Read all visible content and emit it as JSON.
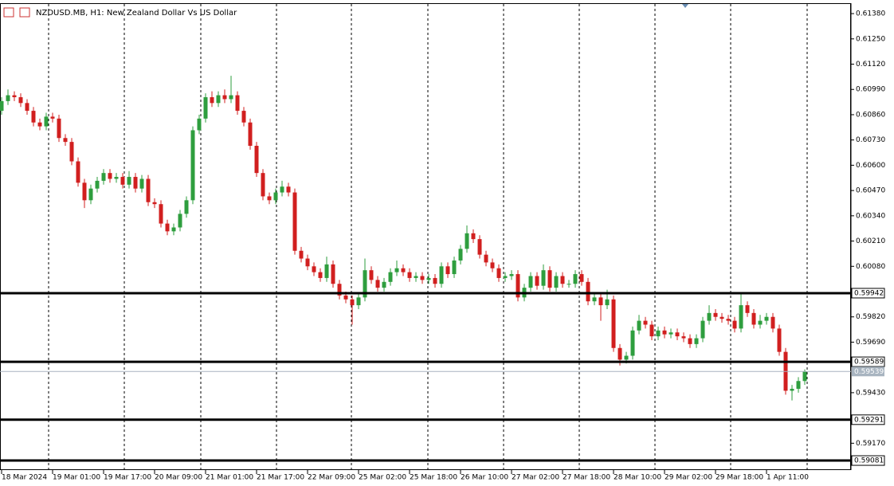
{
  "chart_data": {
    "type": "candlestick",
    "title": "NZDUSD.MB, H1:  New Zealand Dollar Vs US Dollar",
    "bull_color": "#2e9e3e",
    "bear_color": "#d11f1f",
    "ylim": [
      0.59032,
      0.6145
    ],
    "yticks": [
      {
        "value": 0.6138,
        "label": "0.61380"
      },
      {
        "value": 0.6125,
        "label": "0.61250"
      },
      {
        "value": 0.6112,
        "label": "0.61120"
      },
      {
        "value": 0.6099,
        "label": "0.60990"
      },
      {
        "value": 0.6086,
        "label": "0.60860"
      },
      {
        "value": 0.6073,
        "label": "0.60730"
      },
      {
        "value": 0.606,
        "label": "0.60600"
      },
      {
        "value": 0.6047,
        "label": "0.60470"
      },
      {
        "value": 0.6034,
        "label": "0.60340"
      },
      {
        "value": 0.6021,
        "label": "0.60210"
      },
      {
        "value": 0.6008,
        "label": "0.60080"
      },
      {
        "value": 0.5982,
        "label": "0.59820"
      },
      {
        "value": 0.5969,
        "label": "0.59690"
      },
      {
        "value": 0.5943,
        "label": "0.59430"
      },
      {
        "value": 0.5917,
        "label": "0.59170"
      }
    ],
    "xticks": [
      {
        "value": 0,
        "label": "18 Mar 2024"
      },
      {
        "value": 8,
        "label": "19 Mar 01:00"
      },
      {
        "value": 16,
        "label": "19 Mar 17:00"
      },
      {
        "value": 24,
        "label": "20 Mar 09:00"
      },
      {
        "value": 32,
        "label": "21 Mar 01:00"
      },
      {
        "value": 40,
        "label": "21 Mar 17:00"
      },
      {
        "value": 48,
        "label": "22 Mar 09:00"
      },
      {
        "value": 56,
        "label": "25 Mar 02:00"
      },
      {
        "value": 64,
        "label": "25 Mar 18:00"
      },
      {
        "value": 72,
        "label": "26 Mar 10:00"
      },
      {
        "value": 80,
        "label": "27 Mar 02:00"
      },
      {
        "value": 88,
        "label": "27 Mar 18:00"
      },
      {
        "value": 96,
        "label": "28 Mar 10:00"
      },
      {
        "value": 104,
        "label": "29 Mar 02:00"
      },
      {
        "value": 112,
        "label": "29 Mar 18:00"
      },
      {
        "value": 120,
        "label": "1 Apr 11:00"
      }
    ],
    "levels": [
      0.59942,
      0.59589,
      0.59291,
      0.59081
    ],
    "bid": 0.59539,
    "open": [
      0.6088,
      0.6093,
      0.6096,
      0.6095,
      0.6092,
      0.6088,
      0.6082,
      0.608,
      0.6085,
      0.6084,
      0.6074,
      0.6072,
      0.6062,
      0.6051,
      0.6042,
      0.6048,
      0.6052,
      0.6056,
      0.6053,
      0.6054,
      0.605,
      0.6054,
      0.6048,
      0.6053,
      0.6041,
      0.604,
      0.603,
      0.6026,
      0.6028,
      0.6035,
      0.6042,
      0.6078,
      0.6084,
      0.6095,
      0.6092,
      0.6096,
      0.6094,
      0.6096,
      0.6088,
      0.6082,
      0.607,
      0.6056,
      0.6044,
      0.6042,
      0.6046,
      0.6049,
      0.6046,
      0.6016,
      0.6012,
      0.6008,
      0.6005,
      0.6002,
      0.6009,
      0.5999,
      0.5993,
      0.5991,
      0.5988,
      0.5992,
      0.6006,
      0.6001,
      0.5997,
      0.6,
      0.6005,
      0.6007,
      0.6005,
      0.6002,
      0.6003,
      0.6001,
      0.6002,
      0.5999,
      0.6008,
      0.6004,
      0.6011,
      0.6017,
      0.6025,
      0.6022,
      0.6014,
      0.601,
      0.6007,
      0.6002,
      0.6003,
      0.6004,
      0.5992,
      0.5997,
      0.6003,
      0.5998,
      0.6006,
      0.5997,
      0.6003,
      0.5999,
      0.5999,
      0.6004,
      0.6,
      0.599,
      0.5992,
      0.5988,
      0.5991,
      0.5966,
      0.596,
      0.5962,
      0.5975,
      0.598,
      0.5978,
      0.5972,
      0.5975,
      0.5973,
      0.5974,
      0.5972,
      0.5971,
      0.5968,
      0.5971,
      0.598,
      0.5984,
      0.5982,
      0.5981,
      0.598,
      0.5976,
      0.5988,
      0.5984,
      0.5978,
      0.598,
      0.5982,
      0.5976,
      0.5964,
      0.5944,
      0.5945,
      0.5949
    ],
    "high": [
      0.6095,
      0.6099,
      0.6098,
      0.6097,
      0.6094,
      0.609,
      0.6084,
      0.6087,
      0.6087,
      0.6086,
      0.6076,
      0.6074,
      0.6064,
      0.6053,
      0.605,
      0.6054,
      0.6058,
      0.6058,
      0.6056,
      0.6056,
      0.6057,
      0.6056,
      0.6055,
      0.6055,
      0.6043,
      0.6042,
      0.6032,
      0.603,
      0.6037,
      0.6044,
      0.608,
      0.6086,
      0.6097,
      0.6098,
      0.6098,
      0.6099,
      0.6106,
      0.6098,
      0.609,
      0.6084,
      0.6072,
      0.6058,
      0.6046,
      0.6048,
      0.6052,
      0.6051,
      0.6048,
      0.6018,
      0.6014,
      0.601,
      0.6007,
      0.6013,
      0.6011,
      0.6001,
      0.5995,
      0.5993,
      0.5994,
      0.6012,
      0.6008,
      0.6003,
      0.6002,
      0.6007,
      0.6011,
      0.6009,
      0.6007,
      0.6005,
      0.6005,
      0.6004,
      0.6004,
      0.601,
      0.601,
      0.6013,
      0.6019,
      0.6029,
      0.6027,
      0.6024,
      0.6016,
      0.6012,
      0.6009,
      0.6005,
      0.6006,
      0.6006,
      0.5999,
      0.6005,
      0.6005,
      0.6009,
      0.6008,
      0.6005,
      0.6005,
      0.6001,
      0.6006,
      0.6006,
      0.6002,
      0.5994,
      0.5994,
      0.5996,
      0.5993,
      0.5968,
      0.5964,
      0.5977,
      0.5983,
      0.5982,
      0.598,
      0.5977,
      0.5977,
      0.5976,
      0.5976,
      0.5974,
      0.5973,
      0.5973,
      0.5982,
      0.5988,
      0.5986,
      0.5984,
      0.5983,
      0.5982,
      0.5994,
      0.599,
      0.5986,
      0.5983,
      0.5984,
      0.5984,
      0.5978,
      0.5966,
      0.5947,
      0.5951,
      0.5955
    ],
    "low": [
      0.6086,
      0.6091,
      0.6093,
      0.609,
      0.6086,
      0.608,
      0.6078,
      0.6078,
      0.6082,
      0.6072,
      0.607,
      0.606,
      0.6049,
      0.6038,
      0.604,
      0.6046,
      0.605,
      0.6051,
      0.6051,
      0.6048,
      0.6048,
      0.6046,
      0.6046,
      0.6039,
      0.6038,
      0.6028,
      0.6024,
      0.6024,
      0.6026,
      0.6033,
      0.604,
      0.6076,
      0.6082,
      0.609,
      0.609,
      0.6092,
      0.6092,
      0.6086,
      0.608,
      0.6068,
      0.6054,
      0.6042,
      0.604,
      0.604,
      0.6044,
      0.6044,
      0.6014,
      0.601,
      0.6006,
      0.6003,
      0.6,
      0.6,
      0.5997,
      0.5991,
      0.5989,
      0.5978,
      0.5986,
      0.599,
      0.5999,
      0.5995,
      0.5995,
      0.5998,
      0.6003,
      0.6003,
      0.6,
      0.6,
      0.5999,
      0.5999,
      0.5997,
      0.5997,
      0.6002,
      0.6002,
      0.6009,
      0.6015,
      0.602,
      0.6012,
      0.6008,
      0.6005,
      0.6,
      0.6,
      0.6001,
      0.599,
      0.599,
      0.5995,
      0.5996,
      0.5996,
      0.5995,
      0.5995,
      0.5997,
      0.5997,
      0.5997,
      0.5998,
      0.5988,
      0.5988,
      0.598,
      0.5986,
      0.5964,
      0.5957,
      0.5958,
      0.596,
      0.5973,
      0.5976,
      0.597,
      0.597,
      0.5971,
      0.5971,
      0.597,
      0.5969,
      0.5966,
      0.5966,
      0.5969,
      0.5978,
      0.598,
      0.5979,
      0.5978,
      0.5974,
      0.5974,
      0.5982,
      0.5976,
      0.5976,
      0.5978,
      0.5974,
      0.5962,
      0.5942,
      0.5939,
      0.5943,
      0.5947
    ],
    "close": [
      0.6093,
      0.6096,
      0.6095,
      0.6092,
      0.6088,
      0.6082,
      0.608,
      0.6085,
      0.6084,
      0.6074,
      0.6072,
      0.6062,
      0.6051,
      0.6042,
      0.6048,
      0.6052,
      0.6056,
      0.6053,
      0.6054,
      0.605,
      0.6054,
      0.6048,
      0.6053,
      0.6041,
      0.604,
      0.603,
      0.6026,
      0.6028,
      0.6035,
      0.6042,
      0.6078,
      0.6084,
      0.6095,
      0.6092,
      0.6096,
      0.6094,
      0.6096,
      0.6088,
      0.6082,
      0.607,
      0.6056,
      0.6044,
      0.6042,
      0.6046,
      0.6049,
      0.6046,
      0.6016,
      0.6012,
      0.6008,
      0.6005,
      0.6002,
      0.6009,
      0.5999,
      0.5993,
      0.5991,
      0.5988,
      0.5992,
      0.6006,
      0.6001,
      0.5997,
      0.6,
      0.6005,
      0.6007,
      0.6005,
      0.6002,
      0.6003,
      0.6001,
      0.6002,
      0.5999,
      0.6008,
      0.6004,
      0.6011,
      0.6017,
      0.6025,
      0.6022,
      0.6014,
      0.601,
      0.6007,
      0.6002,
      0.6003,
      0.6004,
      0.5992,
      0.5997,
      0.6003,
      0.5998,
      0.6006,
      0.5997,
      0.6003,
      0.5999,
      0.5999,
      0.6004,
      0.6,
      0.599,
      0.5992,
      0.5988,
      0.5991,
      0.5966,
      0.596,
      0.5962,
      0.5975,
      0.598,
      0.5978,
      0.5972,
      0.5975,
      0.5973,
      0.5974,
      0.5972,
      0.5971,
      0.5968,
      0.5971,
      0.598,
      0.5984,
      0.5982,
      0.5981,
      0.598,
      0.5976,
      0.5988,
      0.5984,
      0.5978,
      0.598,
      0.5982,
      0.5976,
      0.5964,
      0.5944,
      0.5945,
      0.5949,
      0.59539
    ]
  }
}
